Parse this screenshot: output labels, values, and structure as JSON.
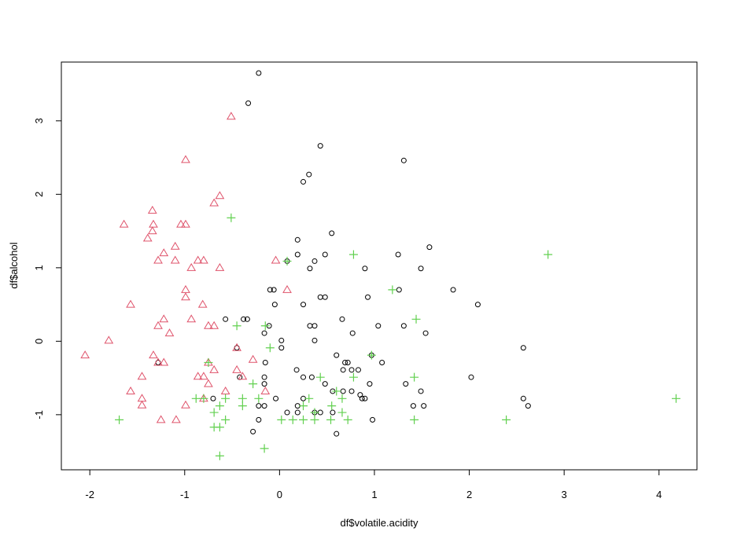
{
  "chart_data": {
    "type": "scatter",
    "title": "",
    "xlabel": "df$volatile.acidity",
    "ylabel": "df$alcohol",
    "xlim": [
      -2.3,
      4.4
    ],
    "ylim": [
      -1.75,
      3.8
    ],
    "xticks": [
      -2,
      -1,
      0,
      1,
      2,
      3,
      4
    ],
    "yticks": [
      -1,
      0,
      1,
      2,
      3
    ],
    "grid": false,
    "legend": "none",
    "series": [
      {
        "marker": "circle",
        "color": "#000000",
        "points": [
          [
            -0.22,
            3.65
          ],
          [
            -0.33,
            3.24
          ],
          [
            0.43,
            2.66
          ],
          [
            1.31,
            2.46
          ],
          [
            0.31,
            2.27
          ],
          [
            0.25,
            2.17
          ],
          [
            0.55,
            1.47
          ],
          [
            0.19,
            1.38
          ],
          [
            1.58,
            1.28
          ],
          [
            0.19,
            1.18
          ],
          [
            0.48,
            1.18
          ],
          [
            1.25,
            1.18
          ],
          [
            0.08,
            1.09
          ],
          [
            0.37,
            1.09
          ],
          [
            0.9,
            0.99
          ],
          [
            0.32,
            0.99
          ],
          [
            1.49,
            0.99
          ],
          [
            -0.1,
            0.7
          ],
          [
            -0.06,
            0.7
          ],
          [
            1.26,
            0.7
          ],
          [
            1.83,
            0.7
          ],
          [
            0.43,
            0.6
          ],
          [
            0.48,
            0.6
          ],
          [
            0.93,
            0.6
          ],
          [
            -0.05,
            0.5
          ],
          [
            0.25,
            0.5
          ],
          [
            2.09,
            0.5
          ],
          [
            -0.57,
            0.3
          ],
          [
            -0.38,
            0.3
          ],
          [
            -0.34,
            0.3
          ],
          [
            0.66,
            0.3
          ],
          [
            -0.11,
            0.21
          ],
          [
            0.32,
            0.21
          ],
          [
            0.37,
            0.21
          ],
          [
            1.04,
            0.21
          ],
          [
            1.31,
            0.21
          ],
          [
            -0.16,
            0.11
          ],
          [
            0.77,
            0.11
          ],
          [
            1.54,
            0.11
          ],
          [
            0.02,
            0.01
          ],
          [
            0.37,
            0.01
          ],
          [
            -0.45,
            -0.09
          ],
          [
            0.02,
            -0.09
          ],
          [
            2.57,
            -0.09
          ],
          [
            -1.28,
            -0.29
          ],
          [
            0.6,
            -0.19
          ],
          [
            0.97,
            -0.19
          ],
          [
            -0.15,
            -0.29
          ],
          [
            0.69,
            -0.29
          ],
          [
            0.72,
            -0.29
          ],
          [
            1.08,
            -0.29
          ],
          [
            0.18,
            -0.39
          ],
          [
            0.67,
            -0.39
          ],
          [
            0.76,
            -0.39
          ],
          [
            0.83,
            -0.39
          ],
          [
            -0.42,
            -0.49
          ],
          [
            -0.16,
            -0.49
          ],
          [
            0.25,
            -0.49
          ],
          [
            0.34,
            -0.49
          ],
          [
            2.02,
            -0.49
          ],
          [
            -0.16,
            -0.58
          ],
          [
            0.48,
            -0.58
          ],
          [
            0.95,
            -0.58
          ],
          [
            1.33,
            -0.58
          ],
          [
            1.49,
            -0.68
          ],
          [
            0.56,
            -0.68
          ],
          [
            0.76,
            -0.68
          ],
          [
            0.67,
            -0.68
          ],
          [
            -0.7,
            -0.78
          ],
          [
            -0.04,
            -0.78
          ],
          [
            0.25,
            -0.78
          ],
          [
            0.87,
            -0.78
          ],
          [
            0.85,
            -0.73
          ],
          [
            0.9,
            -0.78
          ],
          [
            2.57,
            -0.78
          ],
          [
            -0.22,
            -0.88
          ],
          [
            -0.16,
            -0.88
          ],
          [
            0.19,
            -0.88
          ],
          [
            1.41,
            -0.88
          ],
          [
            1.52,
            -0.88
          ],
          [
            2.62,
            -0.88
          ],
          [
            0.08,
            -0.97
          ],
          [
            0.19,
            -0.97
          ],
          [
            0.37,
            -0.97
          ],
          [
            0.43,
            -0.97
          ],
          [
            0.56,
            -0.97
          ],
          [
            -0.22,
            -1.07
          ],
          [
            0.98,
            -1.07
          ],
          [
            -0.28,
            -1.23
          ],
          [
            0.6,
            -1.26
          ]
        ]
      },
      {
        "marker": "triangle",
        "color": "#DF536B",
        "points": [
          [
            -0.51,
            3.06
          ],
          [
            -0.99,
            2.47
          ],
          [
            -0.63,
            1.98
          ],
          [
            -0.69,
            1.88
          ],
          [
            -1.34,
            1.78
          ],
          [
            -1.64,
            1.59
          ],
          [
            -1.33,
            1.59
          ],
          [
            -1.04,
            1.59
          ],
          [
            -0.99,
            1.59
          ],
          [
            -1.34,
            1.5
          ],
          [
            -1.39,
            1.4
          ],
          [
            -1.1,
            1.29
          ],
          [
            -1.22,
            1.2
          ],
          [
            -1.28,
            1.1
          ],
          [
            -1.1,
            1.1
          ],
          [
            -0.86,
            1.1
          ],
          [
            -0.8,
            1.1
          ],
          [
            -0.04,
            1.1
          ],
          [
            -0.93,
            1.0
          ],
          [
            -0.63,
            1.0
          ],
          [
            -0.99,
            0.7
          ],
          [
            0.08,
            0.7
          ],
          [
            -0.99,
            0.6
          ],
          [
            -1.57,
            0.5
          ],
          [
            -0.81,
            0.5
          ],
          [
            -1.22,
            0.3
          ],
          [
            -0.93,
            0.3
          ],
          [
            -1.28,
            0.21
          ],
          [
            -0.75,
            0.21
          ],
          [
            -0.69,
            0.21
          ],
          [
            -1.16,
            0.11
          ],
          [
            -1.8,
            0.01
          ],
          [
            -2.05,
            -0.19
          ],
          [
            -1.33,
            -0.19
          ],
          [
            -1.28,
            -0.29
          ],
          [
            -1.22,
            -0.29
          ],
          [
            -0.75,
            -0.29
          ],
          [
            -0.28,
            -0.25
          ],
          [
            -0.45,
            -0.09
          ],
          [
            -0.69,
            -0.39
          ],
          [
            -0.45,
            -0.39
          ],
          [
            -1.45,
            -0.48
          ],
          [
            -0.86,
            -0.48
          ],
          [
            -0.8,
            -0.48
          ],
          [
            -0.75,
            -0.58
          ],
          [
            -0.39,
            -0.48
          ],
          [
            -1.57,
            -0.68
          ],
          [
            -0.57,
            -0.68
          ],
          [
            -0.15,
            -0.68
          ],
          [
            -1.45,
            -0.78
          ],
          [
            -0.8,
            -0.78
          ],
          [
            -1.45,
            -0.87
          ],
          [
            -0.99,
            -0.87
          ],
          [
            -1.25,
            -1.07
          ],
          [
            -1.09,
            -1.07
          ]
        ]
      },
      {
        "marker": "plus",
        "color": "#61D04F",
        "points": [
          [
            -0.51,
            1.68
          ],
          [
            0.78,
            1.18
          ],
          [
            2.83,
            1.18
          ],
          [
            0.08,
            1.09
          ],
          [
            1.19,
            0.7
          ],
          [
            -0.45,
            0.21
          ],
          [
            -0.15,
            0.21
          ],
          [
            1.44,
            0.3
          ],
          [
            -0.1,
            -0.09
          ],
          [
            0.97,
            -0.19
          ],
          [
            -0.75,
            -0.29
          ],
          [
            -0.28,
            -0.58
          ],
          [
            0.43,
            -0.49
          ],
          [
            0.78,
            -0.49
          ],
          [
            1.42,
            -0.49
          ],
          [
            -0.88,
            -0.78
          ],
          [
            -0.8,
            -0.78
          ],
          [
            -0.57,
            -0.78
          ],
          [
            -0.39,
            -0.78
          ],
          [
            -0.22,
            -0.78
          ],
          [
            0.31,
            -0.78
          ],
          [
            0.6,
            -0.68
          ],
          [
            0.66,
            -0.78
          ],
          [
            0.25,
            -0.88
          ],
          [
            0.55,
            -0.88
          ],
          [
            -0.63,
            -0.88
          ],
          [
            -0.39,
            -0.88
          ],
          [
            -0.69,
            -0.97
          ],
          [
            0.37,
            -0.97
          ],
          [
            0.66,
            -0.97
          ],
          [
            -1.69,
            -1.07
          ],
          [
            -0.57,
            -1.07
          ],
          [
            0.02,
            -1.07
          ],
          [
            0.14,
            -1.07
          ],
          [
            0.25,
            -1.07
          ],
          [
            0.37,
            -1.07
          ],
          [
            0.54,
            -1.07
          ],
          [
            0.72,
            -1.07
          ],
          [
            1.42,
            -1.07
          ],
          [
            2.39,
            -1.07
          ],
          [
            4.18,
            -0.78
          ],
          [
            -0.69,
            -1.17
          ],
          [
            -0.63,
            -1.17
          ],
          [
            -0.16,
            -1.46
          ],
          [
            -0.63,
            -1.56
          ]
        ]
      }
    ]
  }
}
